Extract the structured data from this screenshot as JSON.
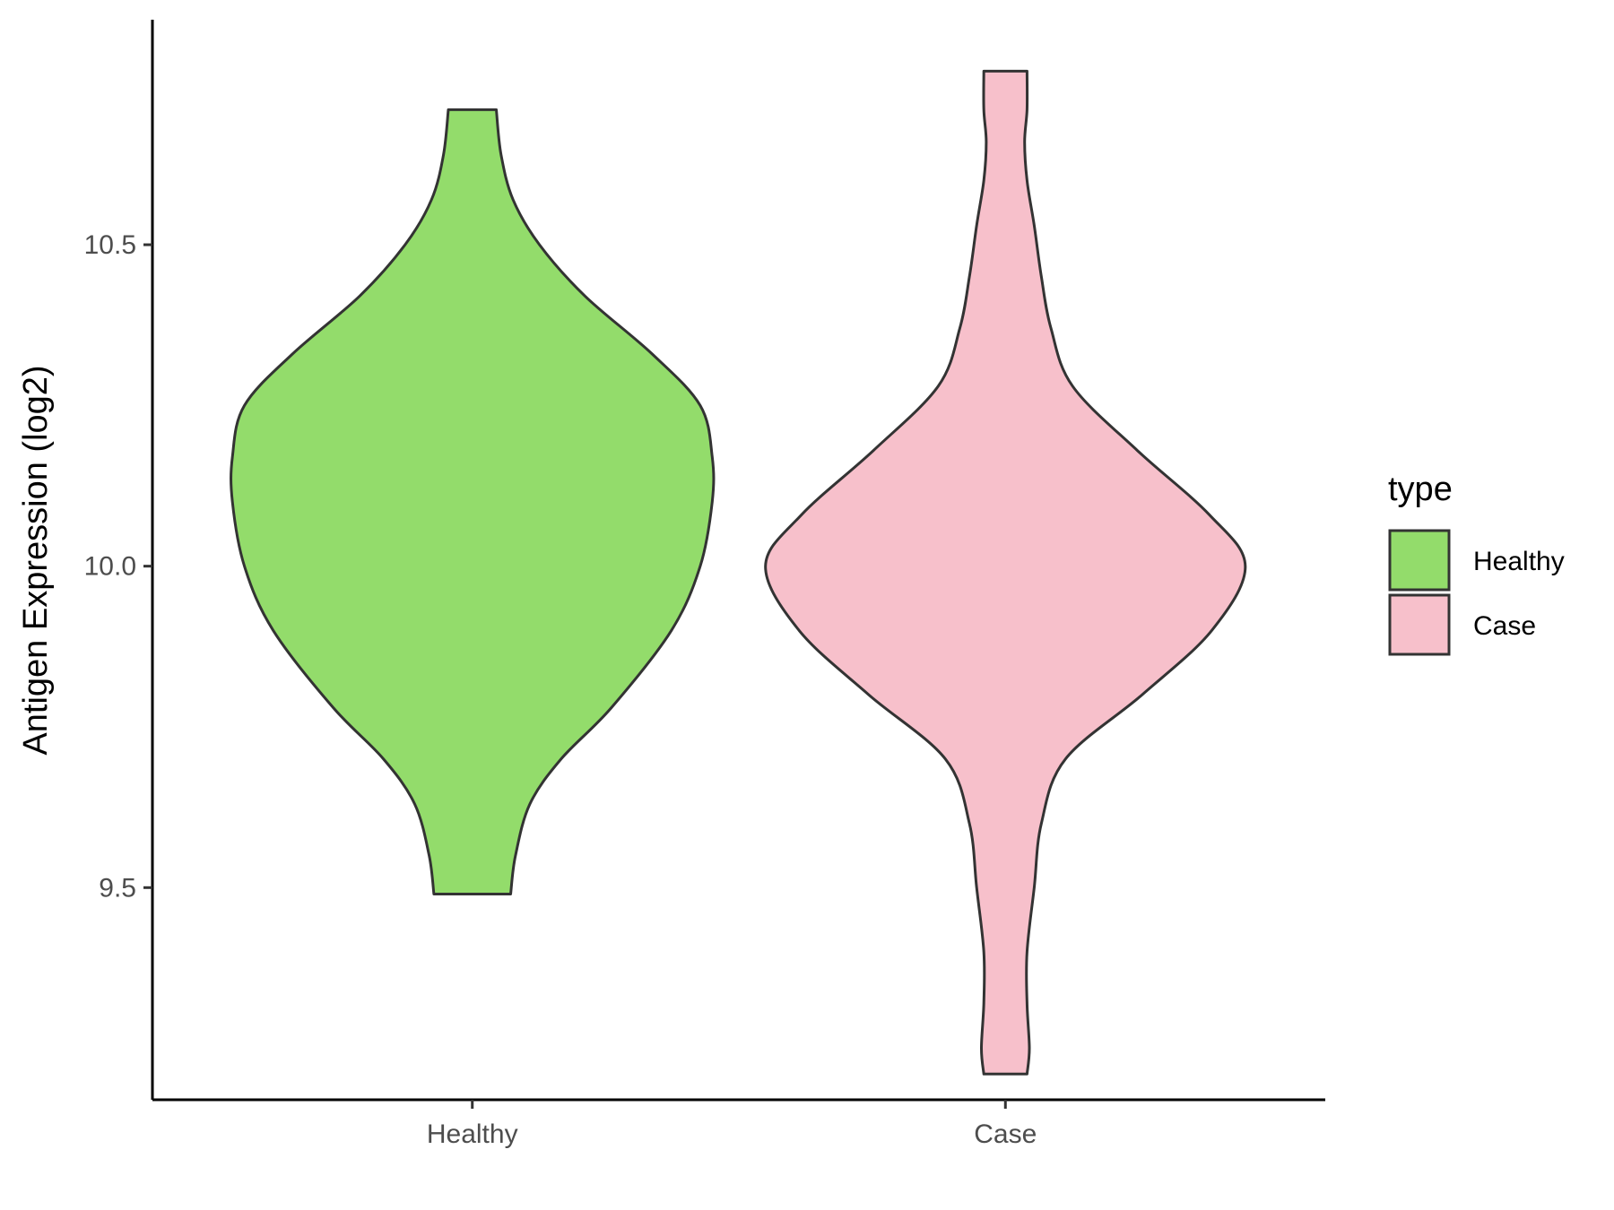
{
  "chart_data": {
    "type": "violin",
    "title": "",
    "xlabel": "",
    "ylabel": "Antigen Expression (log2)",
    "ylim": [
      9.17,
      10.85
    ],
    "yticks": [
      9.5,
      10.0,
      10.5
    ],
    "ytick_labels": [
      "9.5",
      "10.0",
      "10.5"
    ],
    "categories": [
      "Healthy",
      "Case"
    ],
    "grid": false,
    "legend": {
      "title": "type",
      "position": "right",
      "entries": [
        "Healthy",
        "Case"
      ]
    },
    "series": [
      {
        "name": "Healthy",
        "color": "#93dc6b",
        "min": 9.49,
        "max": 10.71,
        "profile": [
          [
            9.49,
            0.16
          ],
          [
            9.55,
            0.18
          ],
          [
            9.63,
            0.24
          ],
          [
            9.7,
            0.37
          ],
          [
            9.78,
            0.58
          ],
          [
            9.9,
            0.83
          ],
          [
            10.0,
            0.95
          ],
          [
            10.1,
            1.0
          ],
          [
            10.17,
            1.0
          ],
          [
            10.25,
            0.95
          ],
          [
            10.33,
            0.75
          ],
          [
            10.42,
            0.47
          ],
          [
            10.5,
            0.28
          ],
          [
            10.57,
            0.17
          ],
          [
            10.64,
            0.12
          ],
          [
            10.71,
            0.1
          ]
        ]
      },
      {
        "name": "Case",
        "color": "#f7c0cb",
        "min": 9.21,
        "max": 10.77,
        "profile": [
          [
            9.21,
            0.09
          ],
          [
            9.25,
            0.1
          ],
          [
            9.32,
            0.09
          ],
          [
            9.4,
            0.09
          ],
          [
            9.5,
            0.12
          ],
          [
            9.6,
            0.15
          ],
          [
            9.7,
            0.25
          ],
          [
            9.8,
            0.57
          ],
          [
            9.9,
            0.86
          ],
          [
            10.0,
            1.0
          ],
          [
            10.08,
            0.85
          ],
          [
            10.18,
            0.55
          ],
          [
            10.28,
            0.28
          ],
          [
            10.37,
            0.19
          ],
          [
            10.45,
            0.15
          ],
          [
            10.53,
            0.12
          ],
          [
            10.6,
            0.09
          ],
          [
            10.66,
            0.08
          ],
          [
            10.71,
            0.09
          ],
          [
            10.77,
            0.09
          ]
        ]
      }
    ]
  }
}
